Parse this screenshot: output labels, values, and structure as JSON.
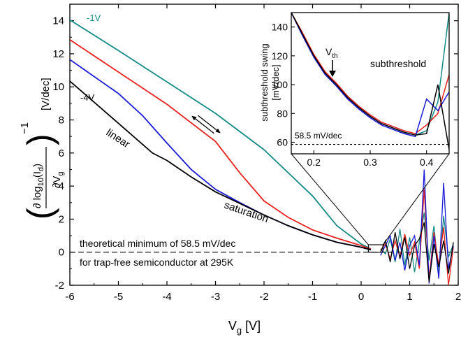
{
  "chart_data": [
    {
      "type": "line",
      "xlabel": "V",
      "xlabel_sub": "g",
      "xlabel_unit": "[V]",
      "ylabel_unit": "[V/dec]",
      "xlim": [
        -6,
        2
      ],
      "ylim": [
        -2,
        15
      ],
      "xticks": [
        -6,
        -5,
        -4,
        -3,
        -2,
        -1,
        0,
        1,
        2
      ],
      "yticks": [
        -2,
        0,
        2,
        4,
        6,
        8,
        10,
        12,
        14
      ],
      "series": [
        {
          "name": "-1V",
          "color": "#138a85",
          "x": [
            -6,
            -5,
            -4,
            -3,
            -2,
            -1,
            -0.5,
            0,
            0.2
          ],
          "y": [
            14.05,
            12.2,
            10.3,
            8.4,
            6.2,
            3.4,
            1.6,
            0.5,
            0.2
          ]
        },
        {
          "name": "",
          "color": "#e8201e",
          "x": [
            -6,
            -5,
            -4,
            -3,
            -2.5,
            -2,
            -1.5,
            -1,
            -0.5,
            0,
            0.2
          ],
          "y": [
            12.85,
            10.9,
            8.95,
            6.7,
            4.8,
            3.1,
            2.1,
            1.35,
            0.85,
            0.4,
            0.18
          ]
        },
        {
          "name": "",
          "color": "#1a1ad6",
          "x": [
            -6,
            -5,
            -4.5,
            -4,
            -3.5,
            -3,
            -2.5,
            -2,
            -1.5,
            -1,
            -0.5,
            0,
            0.2
          ],
          "y": [
            11.65,
            9.6,
            8.25,
            6.6,
            5.0,
            3.8,
            3.0,
            2.25,
            1.6,
            1.05,
            0.6,
            0.3,
            0.15
          ]
        },
        {
          "name": "-4V",
          "color": "#000000",
          "x": [
            -6,
            -5,
            -4.3,
            -4,
            -3.5,
            -3,
            -2.5,
            -2,
            -1.5,
            -1,
            -0.5,
            0,
            0.2
          ],
          "y": [
            10.35,
            7.8,
            6.0,
            5.55,
            4.55,
            3.65,
            2.95,
            2.25,
            1.6,
            1.05,
            0.6,
            0.3,
            0.15
          ]
        }
      ],
      "noise_series": [
        {
          "color": "#138a85",
          "x": [
            0.4,
            0.5,
            0.6,
            0.7,
            0.8,
            0.9,
            1.0,
            1.1,
            1.2,
            1.3,
            1.4,
            1.5,
            1.6,
            1.7,
            1.8,
            1.9
          ],
          "y": [
            0.2,
            -0.1,
            0.8,
            -0.6,
            1.4,
            -0.8,
            0.9,
            -1.2,
            0.6,
            2.4,
            -0.5,
            1.6,
            -1.4,
            2.2,
            -0.3,
            0.5
          ]
        },
        {
          "color": "#e8201e",
          "x": [
            0.4,
            0.5,
            0.6,
            0.7,
            0.8,
            0.9,
            1.0,
            1.1,
            1.2,
            1.3,
            1.4,
            1.5,
            1.6,
            1.7,
            1.8,
            1.9
          ],
          "y": [
            0.1,
            0.5,
            -0.4,
            0.7,
            -0.3,
            1.1,
            -0.2,
            0.6,
            -1.0,
            3.8,
            -1.6,
            1.2,
            -0.8,
            1.5,
            -2.0,
            0.3
          ]
        },
        {
          "color": "#1a1ad6",
          "x": [
            0.4,
            0.5,
            0.6,
            0.7,
            0.8,
            0.9,
            1.0,
            1.1,
            1.2,
            1.3,
            1.4,
            1.5,
            1.6,
            1.7,
            1.8,
            1.9
          ],
          "y": [
            -0.2,
            0.4,
            1.0,
            -0.5,
            0.6,
            -1.1,
            0.4,
            1.0,
            -0.8,
            5.0,
            -1.9,
            1.0,
            -1.6,
            4.2,
            -1.0,
            0.4
          ]
        },
        {
          "color": "#000000",
          "x": [
            0.4,
            0.5,
            0.6,
            0.7,
            0.8,
            0.9,
            1.0,
            1.1,
            1.2,
            1.3,
            1.4,
            1.5,
            1.6,
            1.7,
            1.8,
            1.9
          ],
          "y": [
            0.0,
            0.7,
            -0.6,
            1.2,
            -0.4,
            0.9,
            -1.0,
            0.4,
            0.8,
            1.8,
            -1.8,
            0.5,
            -0.9,
            0.7,
            -1.3,
            0.6
          ]
        }
      ],
      "reference_line": {
        "y": 0,
        "style": "dashed"
      },
      "annotations": {
        "linear": "linear",
        "saturation": "saturation",
        "theory_line1": "theoretical minimum of 58.5 mV/dec",
        "theory_line2": "for trap-free semiconductor at 295K"
      },
      "zoom_box": {
        "x": [
          0.15,
          0.45
        ],
        "y": [
          0,
          0.45
        ]
      }
    },
    {
      "type": "line",
      "xlim": [
        0.16,
        0.44
      ],
      "ylim": [
        52,
        150
      ],
      "xticks": [
        0.2,
        0.3,
        0.4
      ],
      "xtick_labels": [
        "0.2",
        "0.3",
        "0.4"
      ],
      "yticks": [
        60,
        80,
        100,
        120,
        140
      ],
      "ylabel_line1": "subthreshold swing",
      "ylabel_line2": "[mV/dec]",
      "title": "subthreshold",
      "vth_label": "V",
      "vth_sub": "th",
      "vth_x": 0.25,
      "reference_line": {
        "y": 58.5,
        "label": "58.5 mV/dec"
      },
      "series": [
        {
          "color": "#138a85",
          "x": [
            0.16,
            0.18,
            0.2,
            0.22,
            0.24,
            0.26,
            0.28,
            0.3,
            0.32,
            0.34,
            0.36,
            0.38,
            0.4,
            0.42,
            0.44
          ],
          "y": [
            150,
            135,
            120,
            108,
            100,
            91,
            84,
            78,
            73,
            70,
            67,
            65,
            68,
            88,
            150
          ]
        },
        {
          "color": "#e8201e",
          "x": [
            0.16,
            0.18,
            0.2,
            0.22,
            0.24,
            0.26,
            0.28,
            0.3,
            0.32,
            0.34,
            0.36,
            0.38,
            0.4,
            0.42,
            0.44
          ],
          "y": [
            150,
            136,
            121,
            109,
            101,
            92,
            85,
            79,
            74,
            71,
            68,
            66,
            72,
            80,
            107
          ]
        },
        {
          "color": "#1a1ad6",
          "x": [
            0.16,
            0.18,
            0.2,
            0.22,
            0.24,
            0.26,
            0.28,
            0.3,
            0.32,
            0.34,
            0.36,
            0.38,
            0.4,
            0.42,
            0.44
          ],
          "y": [
            150,
            134,
            119,
            107,
            99,
            90,
            83,
            77,
            72,
            69,
            66,
            64,
            90,
            82,
            95
          ]
        },
        {
          "color": "#000000",
          "x": [
            0.16,
            0.18,
            0.2,
            0.22,
            0.24,
            0.26,
            0.28,
            0.3,
            0.32,
            0.34,
            0.36,
            0.38,
            0.4,
            0.42,
            0.44
          ],
          "y": [
            150,
            135,
            120,
            108,
            100,
            91,
            84,
            78,
            73,
            70,
            67,
            65,
            66,
            100,
            55
          ]
        }
      ]
    }
  ]
}
